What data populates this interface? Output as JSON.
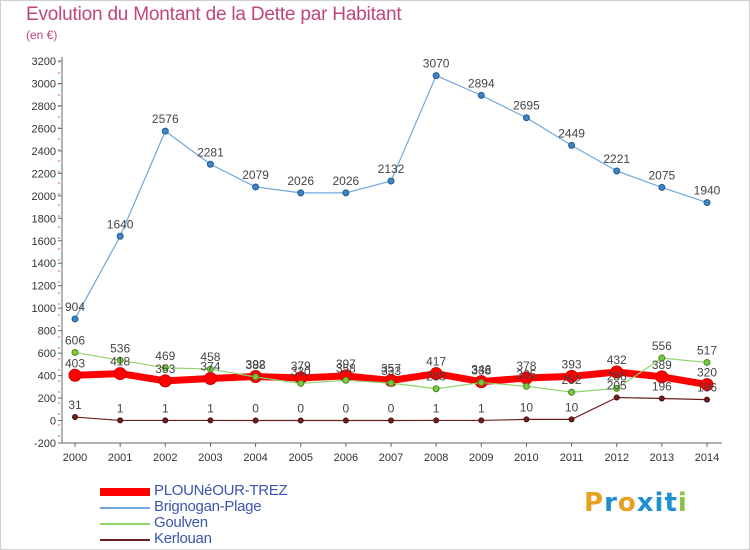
{
  "title": "Evolution du Montant de la Dette par Habitant",
  "subtitle": "(en €)",
  "logo": {
    "text": "Proxiti",
    "letters": [
      "P",
      "r",
      "o",
      "x",
      "i",
      "t",
      "i"
    ],
    "colors": [
      "#e8a020",
      "#1f8fd0",
      "#e8a020",
      "#1f8fd0",
      "#1f8fd0",
      "#1f8fd0",
      "#8bc34a"
    ]
  },
  "chart_data": {
    "type": "line",
    "title": "Evolution du Montant de la Dette par Habitant",
    "subtitle": "(en €)",
    "x": [
      "2000",
      "2001",
      "2002",
      "2003",
      "2004",
      "2005",
      "2006",
      "2007",
      "2008",
      "2009",
      "2010",
      "2011",
      "2012",
      "2013",
      "2014"
    ],
    "yticks": [
      -200,
      0,
      200,
      400,
      600,
      800,
      1000,
      1200,
      1400,
      1600,
      1800,
      2000,
      2200,
      2400,
      2600,
      2800,
      3000,
      3200
    ],
    "ylim": [
      -200,
      3200
    ],
    "grid": false,
    "legend_position": "bottom-left",
    "series": [
      {
        "name": "PLOUNéOUR-TREZ",
        "color": "#ff0000",
        "values": [
          403,
          418,
          353,
          374,
          392,
          379,
          397,
          357,
          417,
          346,
          378,
          393,
          432,
          389,
          320
        ],
        "labels": [
          "403",
          "418",
          "353",
          "374",
          "392",
          "379",
          "397",
          "357",
          "417",
          "346",
          "378",
          "393",
          "432",
          "389",
          "320"
        ]
      },
      {
        "name": "Brignogan-Plage",
        "color": "#6fa8dc",
        "values": [
          904,
          1640,
          2576,
          2281,
          2079,
          2026,
          2026,
          2132,
          3070,
          2894,
          2695,
          2449,
          2221,
          2075,
          1940
        ],
        "labels": [
          "904",
          "1640",
          "2576",
          "2281",
          "2079",
          "2026",
          "2026",
          "2132",
          "3070",
          "2894",
          "2695",
          "2449",
          "2221",
          "2075",
          "1940"
        ]
      },
      {
        "name": "Goulven",
        "color": "#8fd36b",
        "values": [
          606,
          536,
          469,
          458,
          388,
          330,
          358,
          333,
          283,
          338,
          305,
          252,
          286,
          556,
          517
        ],
        "labels": [
          "606",
          "536",
          "469",
          "458",
          "388",
          "330",
          "358",
          "333",
          "283",
          "338",
          "305",
          "252",
          "286",
          "556",
          "517"
        ]
      },
      {
        "name": "Kerlouan",
        "color": "#6b1f1f",
        "values": [
          31,
          1,
          1,
          1,
          0,
          0,
          0,
          0,
          1,
          1,
          10,
          10,
          205,
          196,
          186
        ],
        "labels": [
          "31",
          "1",
          "1",
          "1",
          "0",
          "0",
          "0",
          "0",
          "1",
          "1",
          "10",
          "10",
          "205",
          "196",
          "186"
        ]
      }
    ]
  }
}
